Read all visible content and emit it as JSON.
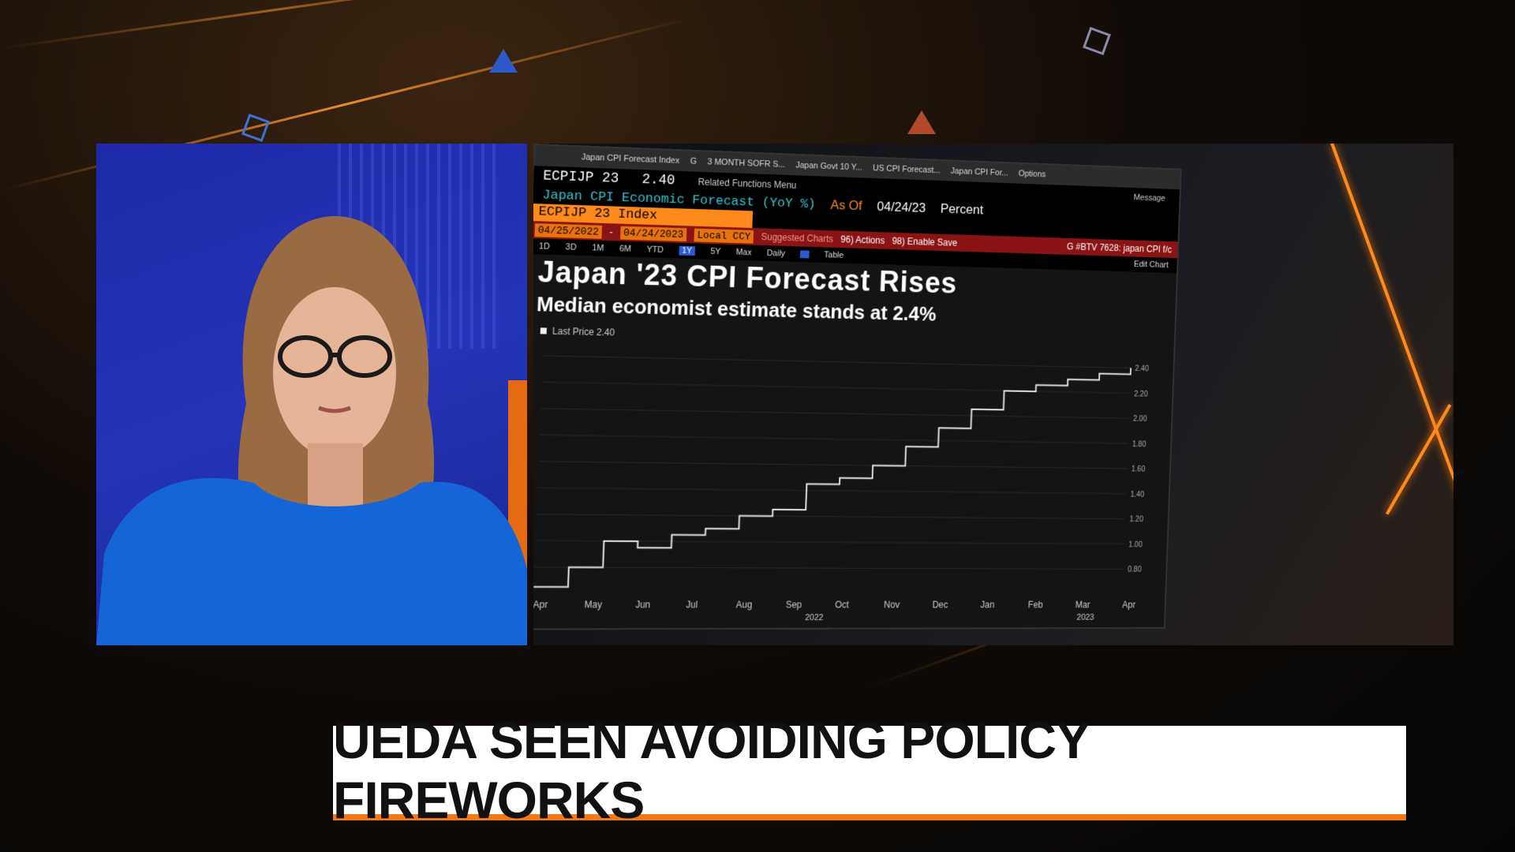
{
  "terminal": {
    "tabs": [
      "Japan CPI Forecast Index",
      "G",
      "3 MONTH SOFR S...",
      "Japan Govt 10 Y...",
      "US CPI Forecast...",
      "Japan CPI For..."
    ],
    "related_functions": "Related Functions Menu",
    "options": "Options",
    "message": "Message",
    "ticker": "ECPIJP 23",
    "ticker_value": "2.40",
    "description": "Japan CPI Economic Forecast (YoY %)",
    "as_of_label": "As Of",
    "as_of_date": "04/24/23",
    "unit": "Percent",
    "index_name": "ECPIJP 23 Index",
    "date_start": "04/25/2022",
    "date_end": "04/24/2023",
    "currency": "Local CCY",
    "suggested": "Suggested Charts",
    "actions": "96) Actions",
    "enable_save": "98) Enable Save",
    "command": "G #BTV 7628: japan CPI f/c",
    "periods": [
      "1D",
      "3D",
      "1M",
      "6M",
      "YTD",
      "1Y",
      "5Y",
      "Max"
    ],
    "selected_period": "1Y",
    "frequency": "Daily",
    "table_label": "Table",
    "edit_chart": "Edit Chart",
    "headline": "Japan '23 CPI Forecast Rises",
    "subheadline": "Median economist estimate stands at 2.4%",
    "legend": "Last Price 2.40"
  },
  "chart_data": {
    "type": "line",
    "series": [
      {
        "name": "Last Price",
        "points": [
          [
            "Apr",
            0.65
          ],
          [
            "May",
            0.8
          ],
          [
            "May",
            1.0
          ],
          [
            "Jun",
            0.95
          ],
          [
            "Jun",
            1.05
          ],
          [
            "Jul",
            1.1
          ],
          [
            "Jul",
            1.2
          ],
          [
            "Aug",
            1.25
          ],
          [
            "Aug",
            1.45
          ],
          [
            "Sep",
            1.5
          ],
          [
            "Sep",
            1.6
          ],
          [
            "Oct",
            1.75
          ],
          [
            "Nov",
            1.9
          ],
          [
            "Dec",
            2.05
          ],
          [
            "Dec",
            2.2
          ],
          [
            "Jan",
            2.25
          ],
          [
            "Feb",
            2.3
          ],
          [
            "Mar",
            2.35
          ],
          [
            "Apr",
            2.4
          ]
        ]
      }
    ],
    "x_labels": [
      "Apr",
      "May",
      "Jun",
      "Jul",
      "Aug",
      "Sep",
      "Oct",
      "Nov",
      "Dec",
      "Jan",
      "Feb",
      "Mar",
      "Apr"
    ],
    "x_year_labels": [
      "2022",
      "2023"
    ],
    "y_ticks": [
      "2.40",
      "2.20",
      "2.00",
      "1.80",
      "1.60",
      "1.40",
      "1.20",
      "1.00",
      "0.80"
    ],
    "ylim": [
      0.6,
      2.45
    ],
    "grid": true,
    "line_color": "#e8e8e8"
  },
  "lower_third": {
    "headline": "UEDA SEEN AVOIDING POLICY FIREWORKS"
  },
  "colors": {
    "accent_orange": "#f07a1a",
    "anchor_bg": "#2434b8",
    "terminal_red": "#8a1414"
  }
}
